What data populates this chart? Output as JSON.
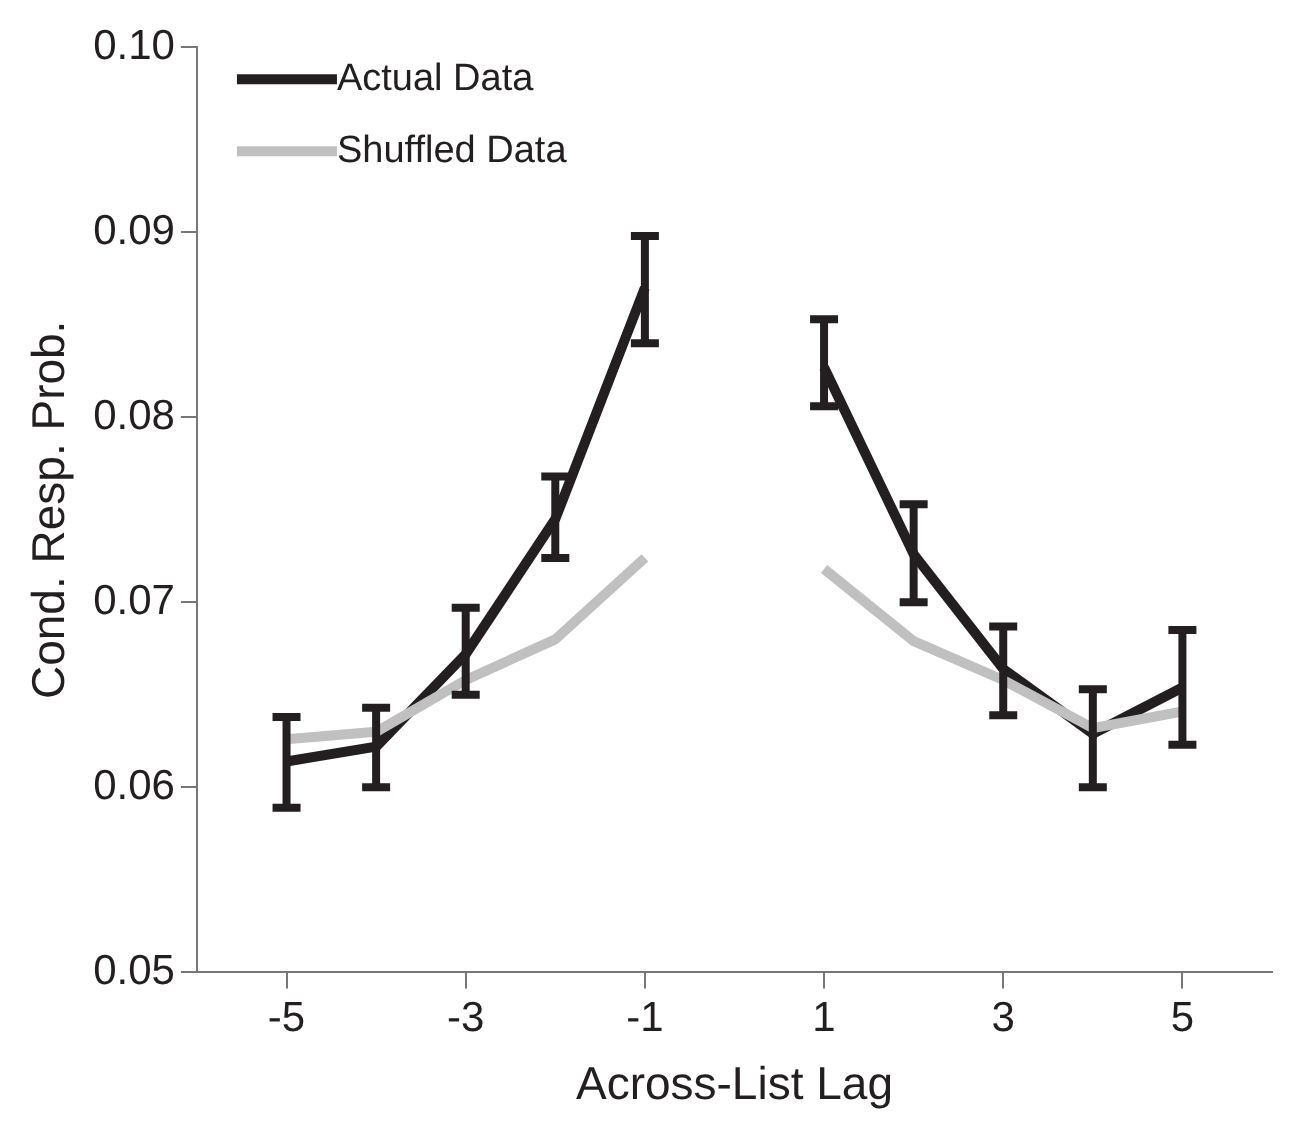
{
  "chart_data": {
    "type": "line",
    "xlabel": "Across-List Lag",
    "ylabel": "Cond. Resp. Prob.",
    "x": [
      -5,
      -4,
      -3,
      -2,
      -1,
      0,
      1,
      2,
      3,
      4,
      5
    ],
    "series": [
      {
        "name": "Actual Data",
        "color": "#231f20",
        "values": [
          0.0614,
          0.0622,
          0.0672,
          0.0745,
          0.087,
          null,
          0.0827,
          0.0726,
          0.0664,
          0.0629,
          0.0654
        ],
        "errors": [
          [
            0.0589,
            0.0638
          ],
          [
            0.06,
            0.0643
          ],
          [
            0.065,
            0.0697
          ],
          [
            0.0724,
            0.0768
          ],
          [
            0.084,
            0.0898
          ],
          null,
          [
            0.0806,
            0.0853
          ],
          [
            0.07,
            0.0753
          ],
          [
            0.0639,
            0.0687
          ],
          [
            0.06,
            0.0653
          ],
          [
            0.0623,
            0.0685
          ]
        ]
      },
      {
        "name": "Shuffled Data",
        "color": "#c0c0c0",
        "values": [
          0.0626,
          0.063,
          0.0658,
          0.068,
          0.0724,
          null,
          0.0718,
          0.0679,
          0.0658,
          0.0632,
          0.0641
        ]
      }
    ],
    "xlim": [
      -6,
      6
    ],
    "xticks": [
      -5,
      -3,
      -1,
      1,
      3,
      5
    ],
    "ylim": [
      0.05,
      0.1
    ],
    "yticks": [
      0.05,
      0.06,
      0.07,
      0.08,
      0.09,
      {
        "value": 0.1,
        "label": "0.10"
      }
    ],
    "legend": "top left",
    "grid": false,
    "marker": "none",
    "line_style": "solid"
  }
}
